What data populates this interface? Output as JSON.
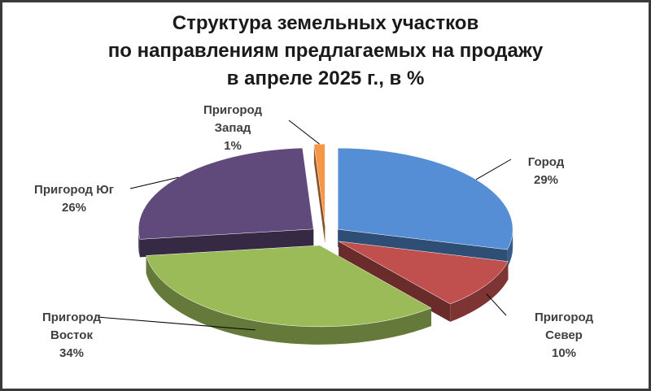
{
  "chart_data": {
    "type": "pie3d",
    "title": [
      "Структура земельных участков",
      "по направлениям предлагаемых на продажу",
      "в апреле 2025 г., в %"
    ],
    "categories": [
      "Город",
      "Пригород Север",
      "Пригород Восток",
      "Пригород Юг",
      "Пригород Запад"
    ],
    "values": [
      29,
      10,
      34,
      26,
      1
    ],
    "value_labels": [
      "29%",
      "10%",
      "34%",
      "26%",
      "1%"
    ],
    "colors": [
      "#558ed5",
      "#c0504d",
      "#9bbb59",
      "#604a7b",
      "#f79646"
    ]
  }
}
